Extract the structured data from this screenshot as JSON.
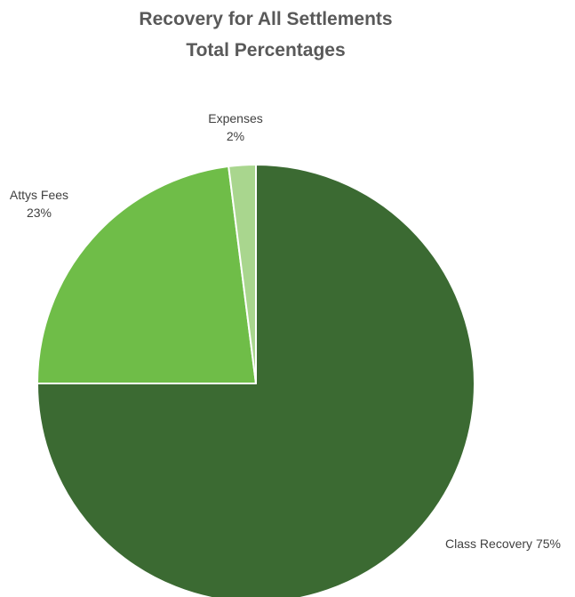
{
  "chart_data": {
    "type": "pie",
    "title_lines": [
      "Recovery for All Settlements",
      "Total Percentages"
    ],
    "start_angle_deg": 0,
    "direction": "clockwise",
    "slices": [
      {
        "name": "Class Recovery",
        "value": 75,
        "color": "#3B6A32",
        "label_lines": [
          "Class Recovery 75%"
        ]
      },
      {
        "name": "Attys Fees",
        "value": 23,
        "color": "#6FBD48",
        "label_lines": [
          "Attys Fees",
          "23%"
        ]
      },
      {
        "name": "Expenses",
        "value": 2,
        "color": "#A9D68E",
        "label_lines": [
          "Expenses",
          "2%"
        ]
      }
    ],
    "legend": "none",
    "slice_border_color": "#ffffff"
  }
}
